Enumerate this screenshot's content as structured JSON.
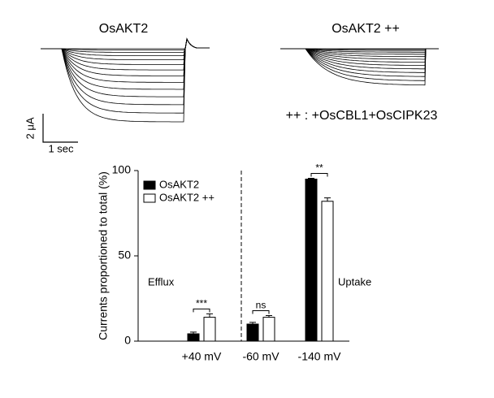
{
  "traces": {
    "left_title": "OsAKT2",
    "right_title": "OsAKT2 ++",
    "note": "++ : +OsCBL1+OsCIPK23",
    "scale_y": "2 μA",
    "scale_x": "1 sec"
  },
  "chart_data": {
    "type": "bar",
    "ylabel": "Currents proportioned to total (%)",
    "categories": [
      "+40 mV",
      "-60 mV",
      "-140 mV"
    ],
    "series": [
      {
        "name": "OsAKT2",
        "color": "#000000",
        "values": [
          4.3,
          10,
          95
        ],
        "errors": [
          1,
          1,
          0.5
        ]
      },
      {
        "name": "OsAKT2 ++",
        "color": "#ffffff",
        "values": [
          14,
          14,
          82
        ],
        "errors": [
          2,
          1,
          2
        ]
      }
    ],
    "significance": [
      "***",
      "ns",
      "**"
    ],
    "regions": [
      "Efflux",
      "Uptake"
    ],
    "ylim": [
      0,
      100
    ],
    "yticks": [
      0,
      50,
      100
    ],
    "legend": "upper-left"
  }
}
